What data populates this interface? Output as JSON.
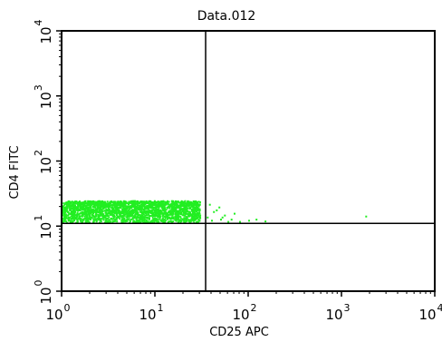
{
  "chart_data": {
    "type": "scatter",
    "title": "Data.012",
    "xlabel": "CD25 APC",
    "ylabel": "CD4 FITC",
    "x_scale": "log",
    "y_scale": "log",
    "xlim": [
      1,
      10000
    ],
    "ylim": [
      1,
      10000
    ],
    "x_ticks": [
      {
        "base": "10",
        "exp": "0",
        "value": 1
      },
      {
        "base": "10",
        "exp": "1",
        "value": 10
      },
      {
        "base": "10",
        "exp": "2",
        "value": 100
      },
      {
        "base": "10",
        "exp": "3",
        "value": 1000
      },
      {
        "base": "10",
        "exp": "4",
        "value": 10000
      }
    ],
    "y_ticks": [
      {
        "base": "10",
        "exp": "0",
        "value": 1
      },
      {
        "base": "10",
        "exp": "1",
        "value": 10
      },
      {
        "base": "10",
        "exp": "2",
        "value": 100
      },
      {
        "base": "10",
        "exp": "3",
        "value": 1000
      },
      {
        "base": "10",
        "exp": "4",
        "value": 10000
      }
    ],
    "quadrant_gates": {
      "x": 35,
      "y": 11
    },
    "grid": false,
    "point_color": "#22ee22",
    "population": {
      "x_range": [
        1,
        30
      ],
      "y_range": [
        11,
        30
      ],
      "dense_y_range": [
        11.5,
        25
      ]
    },
    "series": [
      {
        "points": [
          [
            1.2,
            14
          ],
          [
            1.5,
            18
          ],
          [
            2.0,
            13
          ],
          [
            2.5,
            20
          ],
          [
            3.0,
            16
          ],
          [
            4.0,
            22
          ],
          [
            5.0,
            15
          ],
          [
            6.0,
            19
          ],
          [
            8.0,
            24
          ],
          [
            10,
            17
          ],
          [
            12,
            21
          ],
          [
            15,
            14
          ],
          [
            18,
            18
          ],
          [
            20,
            13
          ],
          [
            25,
            16
          ],
          [
            28,
            12
          ],
          [
            30,
            15
          ],
          [
            36,
            14
          ],
          [
            40,
            12.5
          ],
          [
            45,
            18
          ],
          [
            50,
            13
          ],
          [
            55,
            15
          ],
          [
            60,
            12
          ],
          [
            38,
            22
          ],
          [
            42,
            17
          ],
          [
            48,
            20
          ],
          [
            52,
            14
          ],
          [
            65,
            13
          ],
          [
            70,
            16
          ],
          [
            80,
            12
          ],
          [
            100,
            12.5
          ],
          [
            120,
            13
          ],
          [
            150,
            12.2
          ],
          [
            1800,
            14.5
          ]
        ]
      }
    ]
  }
}
